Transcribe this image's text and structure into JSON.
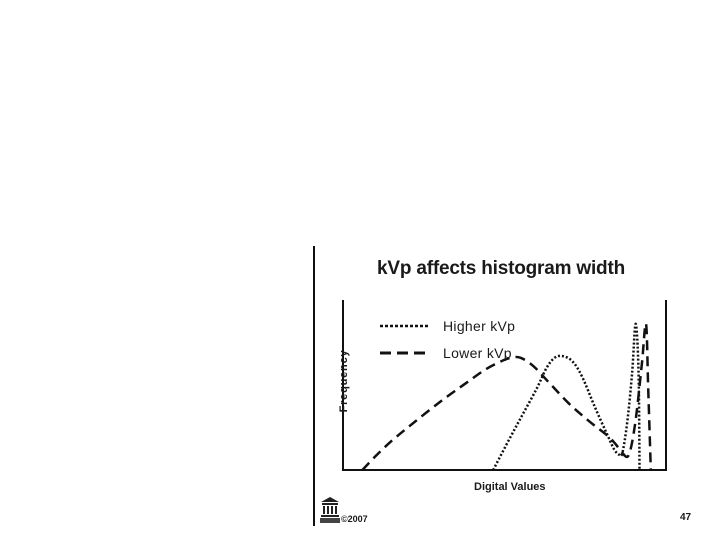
{
  "slide": {
    "copyright": "©2007",
    "page_number": "47"
  },
  "chart_data": {
    "type": "line",
    "title": "kVp affects histogram width",
    "xlabel": "Digital Values",
    "ylabel": "Frequency",
    "xlim": [
      0,
      100
    ],
    "ylim": [
      0,
      100
    ],
    "grid": false,
    "legend_position": "top-left",
    "series": [
      {
        "name": "Higher kVp",
        "style": "dotted",
        "x": [
          46.5,
          52,
          56,
          60,
          63,
          65.5,
          68,
          71,
          74,
          78,
          82,
          84,
          85.5,
          86.5,
          88,
          89.5,
          90.6,
          91.5,
          91.8
        ],
        "y": [
          0,
          20,
          34,
          48,
          60,
          66,
          67,
          64,
          55,
          37,
          20,
          12,
          9,
          10,
          28,
          57,
          86,
          58,
          0
        ]
      },
      {
        "name": "Lower kVp",
        "style": "dashed",
        "x": [
          6,
          10,
          15,
          22,
          30,
          38,
          44,
          49,
          52,
          55,
          59,
          64,
          70,
          76,
          82,
          84.5,
          86.5,
          88.5,
          90.5,
          92.5,
          93.8,
          94.5,
          95.3
        ],
        "y": [
          0,
          8,
          17,
          28,
          40,
          51,
          59,
          64,
          66,
          66,
          61,
          51,
          39,
          29,
          20,
          15,
          10,
          9,
          28,
          62,
          86,
          48,
          0
        ]
      }
    ]
  }
}
